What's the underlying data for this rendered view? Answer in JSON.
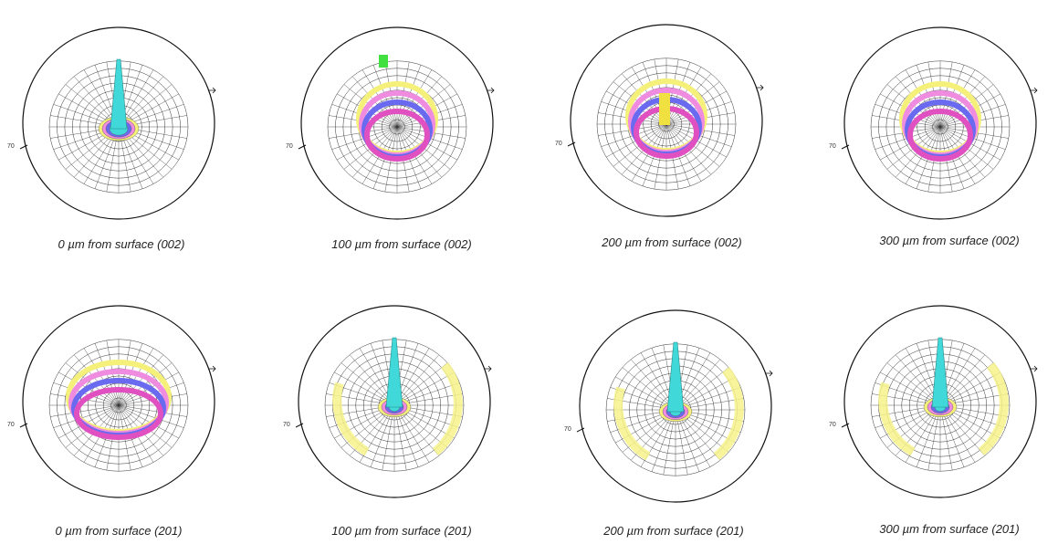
{
  "panels": [
    {
      "caption": "0 µm from surface (002)",
      "angle_label": "70"
    },
    {
      "caption": "100 µm from surface (002)",
      "angle_label": "70"
    },
    {
      "caption": "200 µm from surface (002)",
      "angle_label": "70"
    },
    {
      "caption": "300 µm from surface (002)",
      "angle_label": "70"
    },
    {
      "caption": "0 µm from surface (201)",
      "angle_label": "70"
    },
    {
      "caption": "100 µm from surface (201)",
      "angle_label": "70"
    },
    {
      "caption": "200 µm from surface (201)",
      "angle_label": "70"
    },
    {
      "caption": "300 µm from surface (201)",
      "angle_label": "70"
    }
  ]
}
